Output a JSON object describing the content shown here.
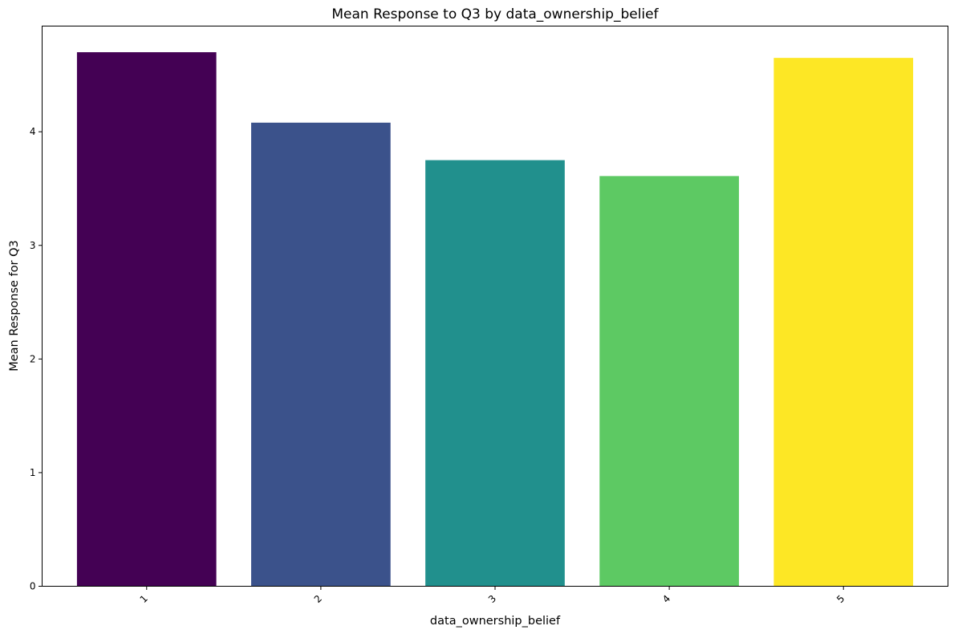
{
  "chart_data": {
    "type": "bar",
    "title": "Mean Response to Q3 by data_ownership_belief",
    "xlabel": "data_ownership_belief",
    "ylabel": "Mean Response for Q3",
    "categories": [
      "1",
      "2",
      "3",
      "4",
      "5"
    ],
    "values": [
      4.7,
      4.08,
      3.75,
      3.61,
      4.65
    ],
    "colors": [
      "#440154",
      "#3b528b",
      "#21908d",
      "#5dc963",
      "#fde725"
    ],
    "ylim": [
      0,
      4.93
    ],
    "yticks": [
      "0",
      "1",
      "2",
      "3",
      "4"
    ],
    "grid": false,
    "legend": "none"
  }
}
